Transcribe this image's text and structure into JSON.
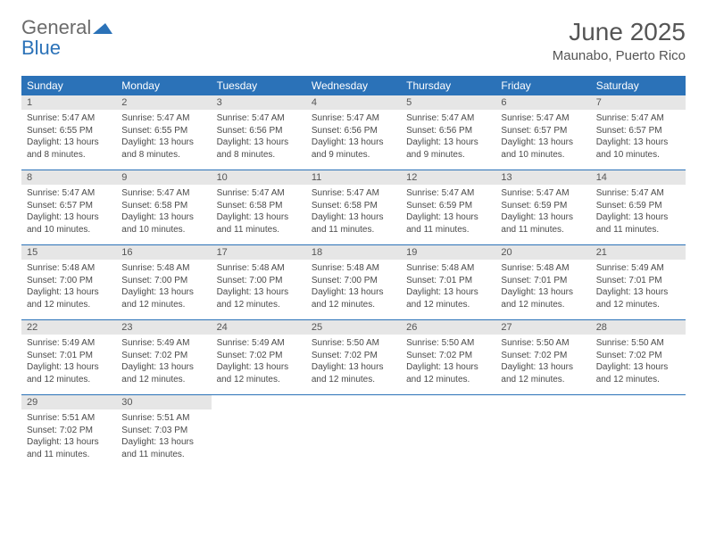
{
  "logo": {
    "general": "General",
    "blue": "Blue"
  },
  "title": {
    "month": "June 2025",
    "location": "Maunabo, Puerto Rico"
  },
  "colors": {
    "header_bg": "#2b72b8",
    "header_text": "#ffffff",
    "daynum_bg": "#e6e6e6",
    "text": "#4a4a4a",
    "logo_gray": "#6b6b6b",
    "logo_blue": "#2b72b8",
    "divider": "#2b72b8"
  },
  "weekdays": [
    "Sunday",
    "Monday",
    "Tuesday",
    "Wednesday",
    "Thursday",
    "Friday",
    "Saturday"
  ],
  "days": [
    {
      "n": "1",
      "sunrise": "5:47 AM",
      "sunset": "6:55 PM",
      "daylight": "13 hours and 8 minutes."
    },
    {
      "n": "2",
      "sunrise": "5:47 AM",
      "sunset": "6:55 PM",
      "daylight": "13 hours and 8 minutes."
    },
    {
      "n": "3",
      "sunrise": "5:47 AM",
      "sunset": "6:56 PM",
      "daylight": "13 hours and 8 minutes."
    },
    {
      "n": "4",
      "sunrise": "5:47 AM",
      "sunset": "6:56 PM",
      "daylight": "13 hours and 9 minutes."
    },
    {
      "n": "5",
      "sunrise": "5:47 AM",
      "sunset": "6:56 PM",
      "daylight": "13 hours and 9 minutes."
    },
    {
      "n": "6",
      "sunrise": "5:47 AM",
      "sunset": "6:57 PM",
      "daylight": "13 hours and 10 minutes."
    },
    {
      "n": "7",
      "sunrise": "5:47 AM",
      "sunset": "6:57 PM",
      "daylight": "13 hours and 10 minutes."
    },
    {
      "n": "8",
      "sunrise": "5:47 AM",
      "sunset": "6:57 PM",
      "daylight": "13 hours and 10 minutes."
    },
    {
      "n": "9",
      "sunrise": "5:47 AM",
      "sunset": "6:58 PM",
      "daylight": "13 hours and 10 minutes."
    },
    {
      "n": "10",
      "sunrise": "5:47 AM",
      "sunset": "6:58 PM",
      "daylight": "13 hours and 11 minutes."
    },
    {
      "n": "11",
      "sunrise": "5:47 AM",
      "sunset": "6:58 PM",
      "daylight": "13 hours and 11 minutes."
    },
    {
      "n": "12",
      "sunrise": "5:47 AM",
      "sunset": "6:59 PM",
      "daylight": "13 hours and 11 minutes."
    },
    {
      "n": "13",
      "sunrise": "5:47 AM",
      "sunset": "6:59 PM",
      "daylight": "13 hours and 11 minutes."
    },
    {
      "n": "14",
      "sunrise": "5:47 AM",
      "sunset": "6:59 PM",
      "daylight": "13 hours and 11 minutes."
    },
    {
      "n": "15",
      "sunrise": "5:48 AM",
      "sunset": "7:00 PM",
      "daylight": "13 hours and 12 minutes."
    },
    {
      "n": "16",
      "sunrise": "5:48 AM",
      "sunset": "7:00 PM",
      "daylight": "13 hours and 12 minutes."
    },
    {
      "n": "17",
      "sunrise": "5:48 AM",
      "sunset": "7:00 PM",
      "daylight": "13 hours and 12 minutes."
    },
    {
      "n": "18",
      "sunrise": "5:48 AM",
      "sunset": "7:00 PM",
      "daylight": "13 hours and 12 minutes."
    },
    {
      "n": "19",
      "sunrise": "5:48 AM",
      "sunset": "7:01 PM",
      "daylight": "13 hours and 12 minutes."
    },
    {
      "n": "20",
      "sunrise": "5:48 AM",
      "sunset": "7:01 PM",
      "daylight": "13 hours and 12 minutes."
    },
    {
      "n": "21",
      "sunrise": "5:49 AM",
      "sunset": "7:01 PM",
      "daylight": "13 hours and 12 minutes."
    },
    {
      "n": "22",
      "sunrise": "5:49 AM",
      "sunset": "7:01 PM",
      "daylight": "13 hours and 12 minutes."
    },
    {
      "n": "23",
      "sunrise": "5:49 AM",
      "sunset": "7:02 PM",
      "daylight": "13 hours and 12 minutes."
    },
    {
      "n": "24",
      "sunrise": "5:49 AM",
      "sunset": "7:02 PM",
      "daylight": "13 hours and 12 minutes."
    },
    {
      "n": "25",
      "sunrise": "5:50 AM",
      "sunset": "7:02 PM",
      "daylight": "13 hours and 12 minutes."
    },
    {
      "n": "26",
      "sunrise": "5:50 AM",
      "sunset": "7:02 PM",
      "daylight": "13 hours and 12 minutes."
    },
    {
      "n": "27",
      "sunrise": "5:50 AM",
      "sunset": "7:02 PM",
      "daylight": "13 hours and 12 minutes."
    },
    {
      "n": "28",
      "sunrise": "5:50 AM",
      "sunset": "7:02 PM",
      "daylight": "13 hours and 12 minutes."
    },
    {
      "n": "29",
      "sunrise": "5:51 AM",
      "sunset": "7:02 PM",
      "daylight": "13 hours and 11 minutes."
    },
    {
      "n": "30",
      "sunrise": "5:51 AM",
      "sunset": "7:03 PM",
      "daylight": "13 hours and 11 minutes."
    }
  ],
  "labels": {
    "sunrise": "Sunrise: ",
    "sunset": "Sunset: ",
    "daylight": "Daylight: "
  }
}
